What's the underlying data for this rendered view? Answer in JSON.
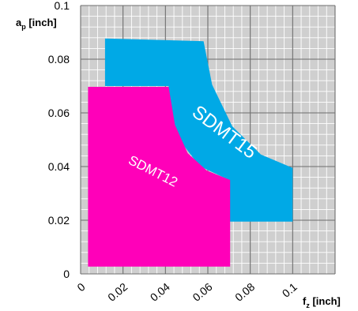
{
  "chart_data": {
    "type": "area",
    "title": "",
    "xlabel": {
      "main": "f",
      "sub": "z",
      "unit": " [inch]"
    },
    "ylabel": {
      "main": "a",
      "sub": "p",
      "unit": " [inch]"
    },
    "xlim": [
      0,
      0.12
    ],
    "ylim": [
      0,
      0.1
    ],
    "xticks": [
      {
        "v": 0,
        "label": "0"
      },
      {
        "v": 0.02,
        "label": "0.02"
      },
      {
        "v": 0.04,
        "label": "0.04"
      },
      {
        "v": 0.06,
        "label": "0.06"
      },
      {
        "v": 0.08,
        "label": "0.08"
      },
      {
        "v": 0.1,
        "label": "0.1"
      }
    ],
    "yticks": [
      {
        "v": 0,
        "label": "0"
      },
      {
        "v": 0.02,
        "label": "0.02"
      },
      {
        "v": 0.04,
        "label": "0.04"
      },
      {
        "v": 0.06,
        "label": "0.06"
      },
      {
        "v": 0.08,
        "label": "0.08"
      },
      {
        "v": 0.1,
        "label": "0.1"
      }
    ],
    "grid": {
      "minor_step": 0.004,
      "major_step": 0.02
    },
    "background_color": "#cfcfcf",
    "series": [
      {
        "name": "SDMT15",
        "color": "#00a9e6",
        "polygon": [
          [
            0.0115,
            0.0877
          ],
          [
            0.058,
            0.0867
          ],
          [
            0.062,
            0.0705
          ],
          [
            0.0715,
            0.055
          ],
          [
            0.085,
            0.0445
          ],
          [
            0.1,
            0.0395
          ],
          [
            0.1,
            0.0195
          ],
          [
            0.07,
            0.0195
          ],
          [
            0.07,
            0.035
          ],
          [
            0.056,
            0.0402
          ],
          [
            0.045,
            0.0515
          ],
          [
            0.0415,
            0.0645
          ],
          [
            0.0415,
            0.07
          ],
          [
            0.0115,
            0.07
          ]
        ]
      },
      {
        "name": "SDMT12",
        "color": "#ff00b9",
        "polygon": [
          [
            0.0035,
            0.0697
          ],
          [
            0.0415,
            0.0697
          ],
          [
            0.0445,
            0.0555
          ],
          [
            0.0505,
            0.045
          ],
          [
            0.0595,
            0.0385
          ],
          [
            0.0705,
            0.035
          ],
          [
            0.0705,
            0.0027
          ],
          [
            0.0035,
            0.0027
          ]
        ]
      }
    ],
    "labels": [
      {
        "text": "SDMT15",
        "x": 0.0675,
        "y": 0.0525,
        "angle": 37,
        "size": 24
      },
      {
        "text": "SDMT12",
        "x": 0.034,
        "y": 0.038,
        "angle": 27,
        "size": 17
      }
    ]
  }
}
